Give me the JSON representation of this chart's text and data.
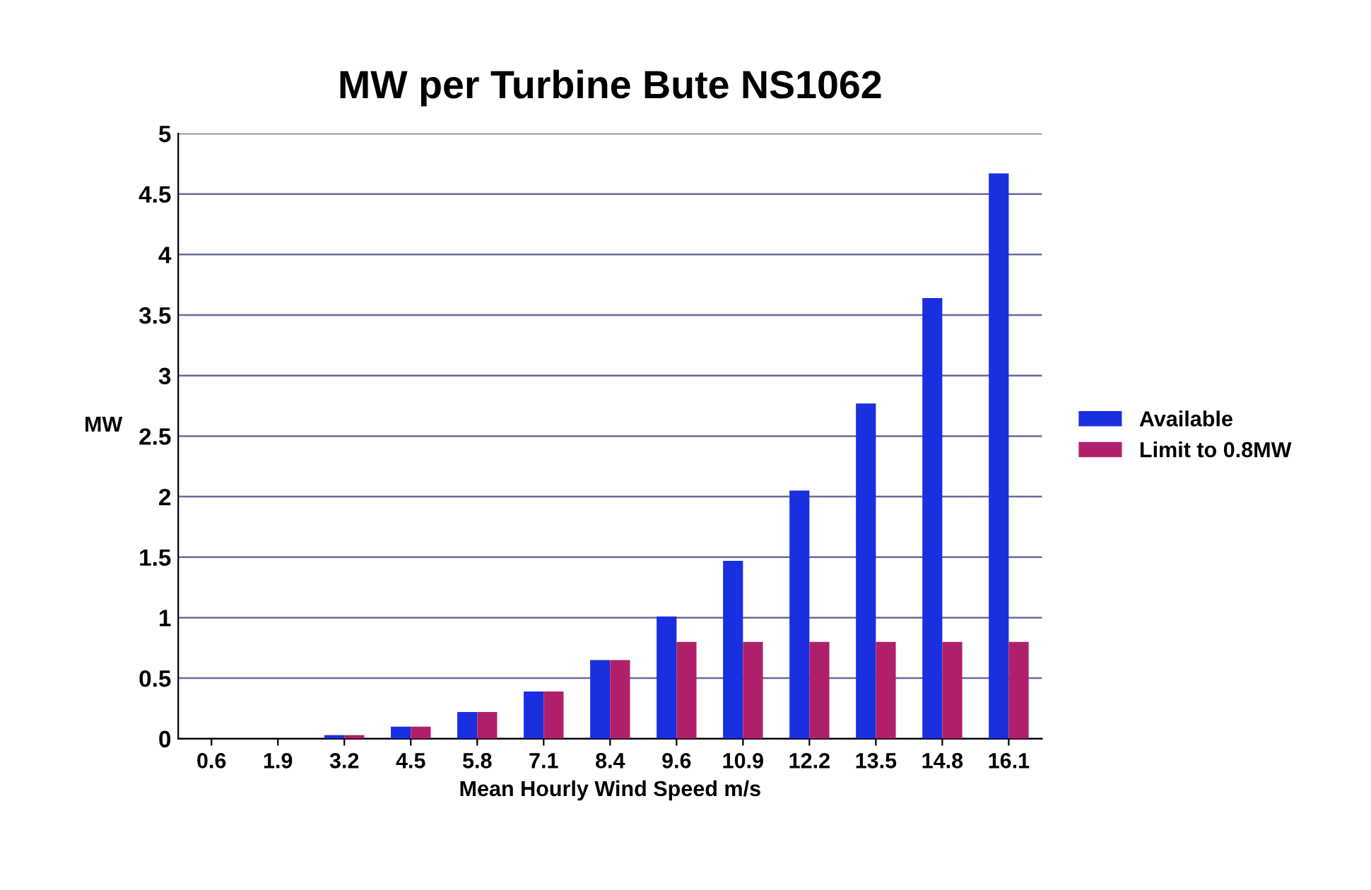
{
  "chart_data": {
    "type": "bar",
    "title": "MW per Turbine Bute NS1062",
    "xlabel": "Mean Hourly Wind Speed m/s",
    "ylabel": "MW",
    "categories": [
      "0.6",
      "1.9",
      "3.2",
      "4.5",
      "5.8",
      "7.1",
      "8.4",
      "9.6",
      "10.9",
      "12.2",
      "13.5",
      "14.8",
      "16.1"
    ],
    "series": [
      {
        "name": "Available",
        "color": "#1a2fe0",
        "values": [
          0,
          0,
          0.03,
          0.1,
          0.22,
          0.39,
          0.65,
          1.01,
          1.47,
          2.05,
          2.77,
          3.64,
          4.67
        ]
      },
      {
        "name": "Limit to 0.8MW",
        "color": "#b0206a",
        "values": [
          0,
          0,
          0.03,
          0.1,
          0.22,
          0.39,
          0.65,
          0.8,
          0.8,
          0.8,
          0.8,
          0.8,
          0.8
        ]
      }
    ],
    "ylim": [
      0,
      5
    ],
    "yticks": [
      0,
      0.5,
      1,
      1.5,
      2,
      2.5,
      3,
      3.5,
      4,
      4.5,
      5
    ],
    "grid": "y",
    "legend": "right"
  }
}
